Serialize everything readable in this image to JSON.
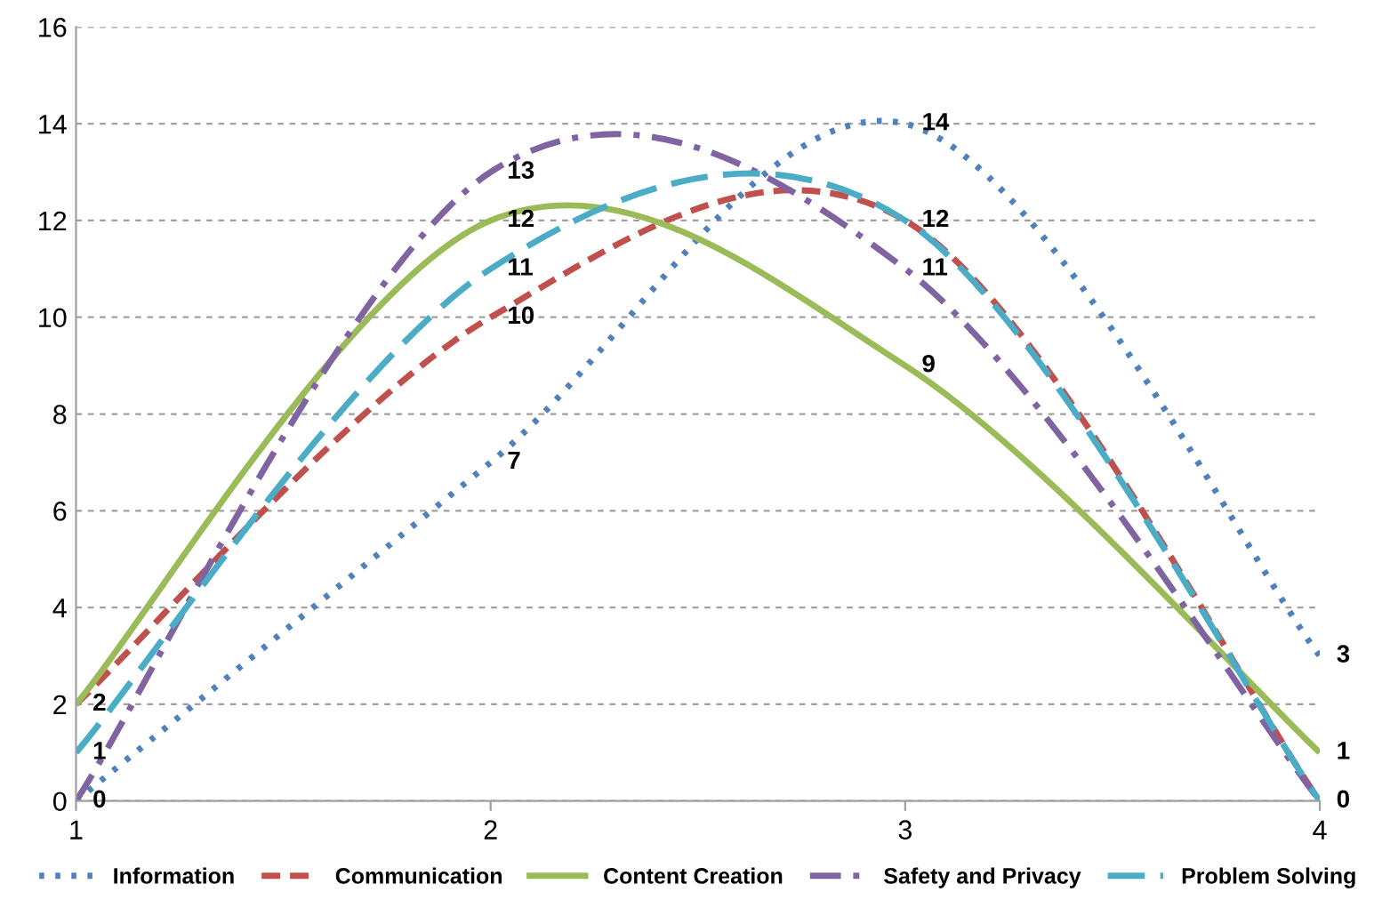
{
  "chart_data": {
    "type": "line",
    "x": [
      1,
      2,
      3,
      4
    ],
    "series": [
      {
        "name": "Information",
        "color": "#4f81bd",
        "line_style": "dotted",
        "values": [
          0,
          7,
          14,
          3
        ],
        "value_labels": [
          "0",
          "7",
          "14",
          "3"
        ]
      },
      {
        "name": "Communication",
        "color": "#c0504d",
        "line_style": "dashed",
        "values": [
          2,
          10,
          12,
          0
        ],
        "value_labels": [
          "2",
          "10",
          null,
          "0"
        ]
      },
      {
        "name": "Content Creation",
        "color": "#9bbb59",
        "line_style": "solid",
        "values": [
          2,
          12,
          9,
          1
        ],
        "value_labels": [
          null,
          "12",
          "9",
          "1"
        ]
      },
      {
        "name": "Safety and Privacy",
        "color": "#8064a2",
        "line_style": "dashdot",
        "values": [
          0,
          13,
          11,
          0
        ],
        "value_labels": [
          null,
          "13",
          "11",
          null
        ]
      },
      {
        "name": "Problem Solving",
        "color": "#4bacc6",
        "line_style": "longdash",
        "values": [
          1,
          11,
          12,
          0
        ],
        "value_labels": [
          "1",
          "11",
          "12",
          null
        ]
      }
    ],
    "xlim": [
      1,
      4
    ],
    "xticks": [
      1,
      2,
      3,
      4
    ],
    "ylim": [
      0,
      16
    ],
    "yticks": [
      0,
      2,
      4,
      6,
      8,
      10,
      12,
      14,
      16
    ],
    "grid": "y",
    "legend": "bottom",
    "marker": "none"
  }
}
